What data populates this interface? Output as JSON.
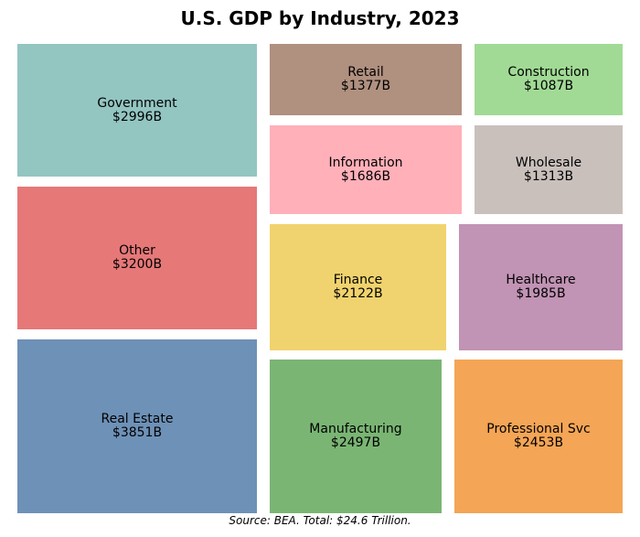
{
  "chart_data": {
    "type": "treemap",
    "title": "U.S. GDP by Industry, 2023",
    "footnote": "Source: BEA. Total: $24.6 Trillion.",
    "unit": "Billion USD",
    "items": [
      {
        "label": "Government",
        "value": 2996,
        "value_label": "$2996B",
        "color": "#93c5c1"
      },
      {
        "label": "Other",
        "value": 3200,
        "value_label": "$3200B",
        "color": "#e67878"
      },
      {
        "label": "Real Estate",
        "value": 3851,
        "value_label": "$3851B",
        "color": "#6e91b7"
      },
      {
        "label": "Retail",
        "value": 1377,
        "value_label": "$1377B",
        "color": "#b0907f"
      },
      {
        "label": "Construction",
        "value": 1087,
        "value_label": "$1087B",
        "color": "#a1da95"
      },
      {
        "label": "Information",
        "value": 1686,
        "value_label": "$1686B",
        "color": "#ffb0b9"
      },
      {
        "label": "Wholesale",
        "value": 1313,
        "value_label": "$1313B",
        "color": "#c9c0bc"
      },
      {
        "label": "Finance",
        "value": 2122,
        "value_label": "$2122B",
        "color": "#f0d36e"
      },
      {
        "label": "Healthcare",
        "value": 1985,
        "value_label": "$1985B",
        "color": "#c193b4"
      },
      {
        "label": "Manufacturing",
        "value": 2497,
        "value_label": "$2497B",
        "color": "#7ab574"
      },
      {
        "label": "Professional Svc",
        "value": 2453,
        "value_label": "$2453B",
        "color": "#f4a556"
      }
    ]
  }
}
